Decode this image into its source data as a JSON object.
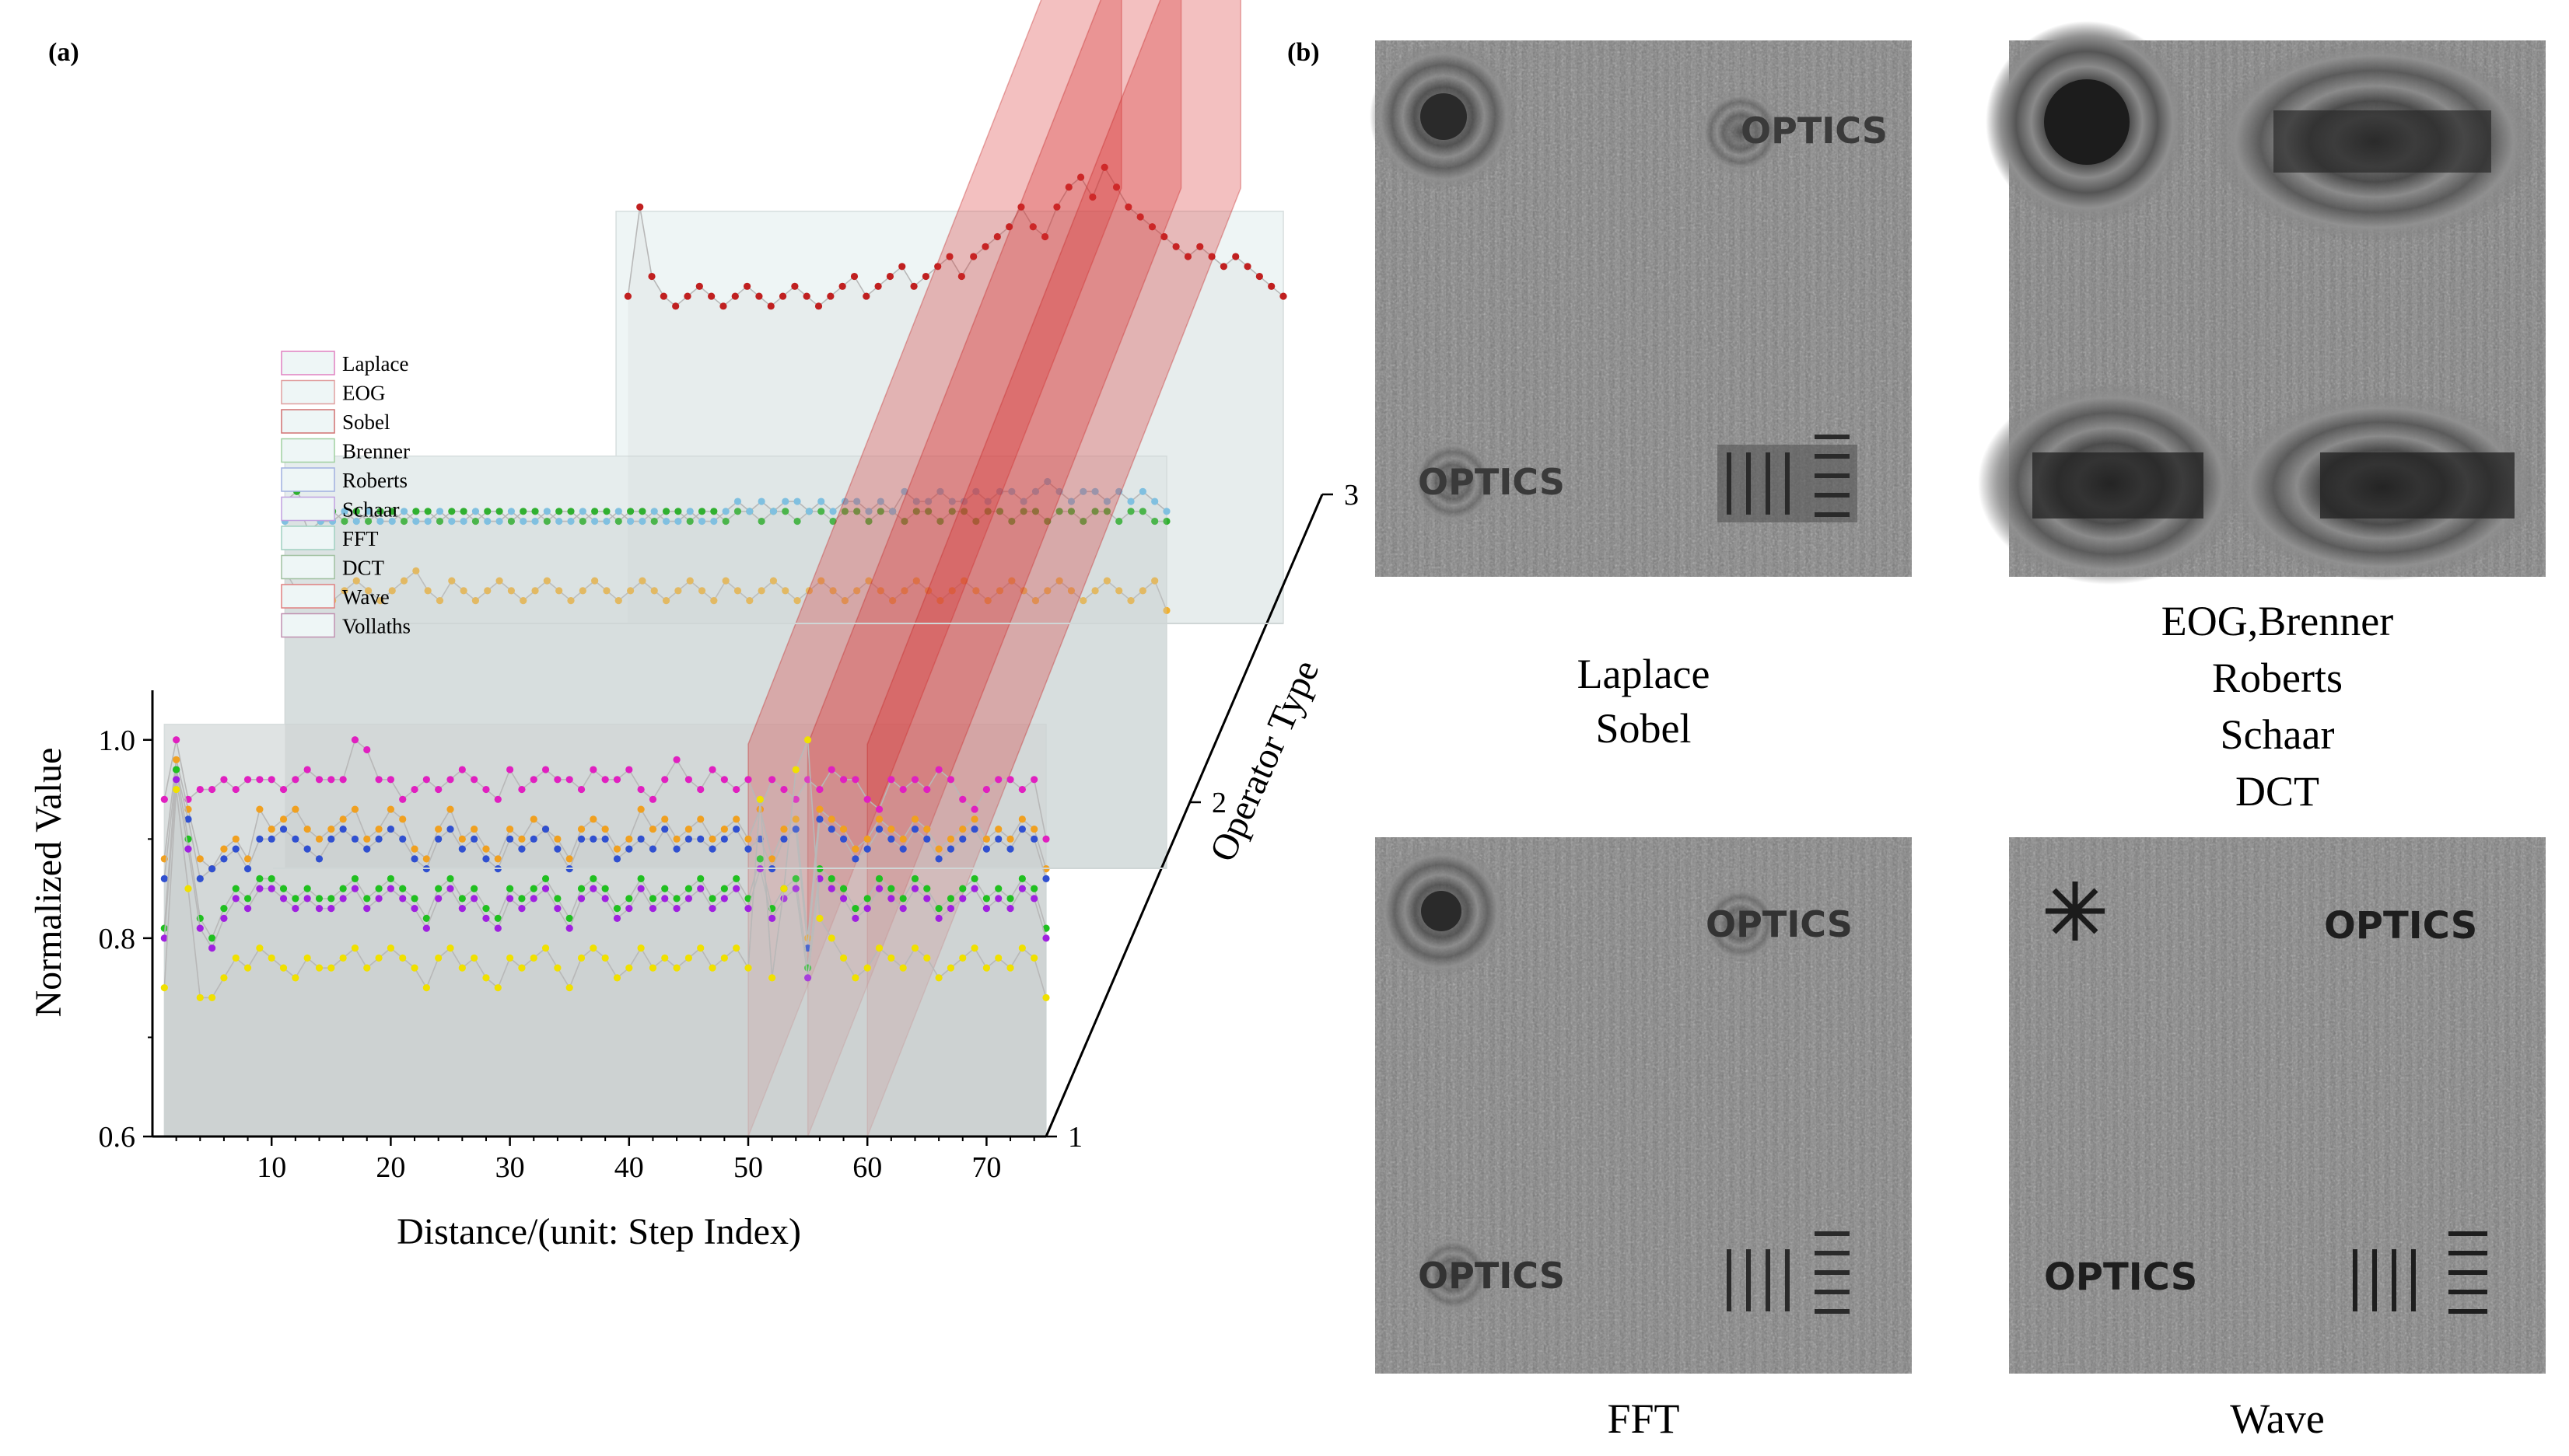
{
  "panel_labels": {
    "a": "(a)",
    "b": "(b)"
  },
  "chart_data": {
    "type": "line",
    "title": "",
    "xlabel": "Distance/(unit: Step Index)",
    "ylabel": "Normalized Value",
    "zlabel": "Operator Type",
    "xlim": [
      0,
      75
    ],
    "ylim": [
      0.6,
      1.05
    ],
    "x_ticks": [
      "10",
      "20",
      "30",
      "40",
      "50",
      "60",
      "70"
    ],
    "y_ticks": [
      "0.6",
      "0.8",
      "1.0"
    ],
    "z_ticks": [
      "1",
      "2",
      "3"
    ],
    "legend_position": "upper-left",
    "legend": [
      "Laplace",
      "EOG",
      "Sobel",
      "Brenner",
      "Roberts",
      "Schaar",
      "FFT",
      "DCT",
      "Wave",
      "Vollaths"
    ],
    "highlight_planes_x": [
      50,
      55,
      60
    ],
    "series": [
      {
        "name": "Laplace (pink, layer 1)",
        "layer": 1,
        "x_start": 1,
        "color": "#e020c0",
        "values": [
          0.94,
          1.0,
          0.94,
          0.95,
          0.95,
          0.96,
          0.95,
          0.96,
          0.96,
          0.96,
          0.95,
          0.96,
          0.97,
          0.96,
          0.96,
          0.96,
          1.0,
          0.99,
          0.96,
          0.96,
          0.94,
          0.95,
          0.96,
          0.95,
          0.96,
          0.97,
          0.96,
          0.95,
          0.94,
          0.97,
          0.95,
          0.96,
          0.97,
          0.96,
          0.96,
          0.95,
          0.97,
          0.96,
          0.96,
          0.97,
          0.95,
          0.94,
          0.96,
          0.98,
          0.96,
          0.95,
          0.97,
          0.96,
          0.95,
          0.96,
          0.93,
          0.96,
          0.95,
          0.94,
          0.96,
          0.95,
          0.97,
          0.96,
          0.96,
          0.94,
          0.93,
          0.96,
          0.95,
          0.96,
          0.95,
          0.97,
          0.96,
          0.94,
          0.93,
          0.95,
          0.96,
          0.96,
          0.95,
          0.96,
          0.9
        ]
      },
      {
        "name": "Sobel (orange, layer 1)",
        "layer": 1,
        "x_start": 1,
        "color": "#f0a020",
        "values": [
          0.88,
          0.98,
          0.93,
          0.88,
          0.87,
          0.89,
          0.9,
          0.88,
          0.93,
          0.91,
          0.92,
          0.93,
          0.91,
          0.9,
          0.91,
          0.92,
          0.93,
          0.9,
          0.91,
          0.93,
          0.92,
          0.89,
          0.88,
          0.91,
          0.93,
          0.9,
          0.91,
          0.89,
          0.88,
          0.91,
          0.9,
          0.92,
          0.91,
          0.9,
          0.88,
          0.91,
          0.92,
          0.91,
          0.89,
          0.9,
          0.93,
          0.91,
          0.92,
          0.9,
          0.91,
          0.92,
          0.9,
          0.91,
          0.92,
          0.9,
          0.93,
          0.88,
          0.91,
          0.92,
          0.8,
          0.93,
          0.92,
          0.91,
          0.89,
          0.9,
          0.92,
          0.91,
          0.9,
          0.92,
          0.91,
          0.89,
          0.9,
          0.91,
          0.92,
          0.9,
          0.91,
          0.9,
          0.92,
          0.91,
          0.87
        ]
      },
      {
        "name": "Roberts (blue, layer 1)",
        "layer": 1,
        "x_start": 1,
        "color": "#3050d0",
        "values": [
          0.86,
          0.97,
          0.92,
          0.86,
          0.87,
          0.88,
          0.89,
          0.87,
          0.9,
          0.9,
          0.91,
          0.9,
          0.89,
          0.88,
          0.9,
          0.91,
          0.9,
          0.89,
          0.9,
          0.91,
          0.9,
          0.88,
          0.87,
          0.9,
          0.91,
          0.89,
          0.9,
          0.88,
          0.87,
          0.9,
          0.89,
          0.9,
          0.91,
          0.89,
          0.87,
          0.9,
          0.9,
          0.9,
          0.88,
          0.89,
          0.9,
          0.89,
          0.91,
          0.89,
          0.9,
          0.9,
          0.89,
          0.9,
          0.91,
          0.89,
          0.9,
          0.87,
          0.9,
          0.91,
          0.79,
          0.92,
          0.91,
          0.9,
          0.88,
          0.89,
          0.91,
          0.9,
          0.89,
          0.91,
          0.9,
          0.88,
          0.89,
          0.9,
          0.91,
          0.89,
          0.9,
          0.89,
          0.91,
          0.9,
          0.86
        ]
      },
      {
        "name": "Brenner (green, layer 1)",
        "layer": 1,
        "x_start": 1,
        "color": "#20c020",
        "values": [
          0.81,
          0.97,
          0.9,
          0.82,
          0.8,
          0.83,
          0.85,
          0.84,
          0.86,
          0.86,
          0.85,
          0.84,
          0.85,
          0.84,
          0.84,
          0.85,
          0.86,
          0.84,
          0.85,
          0.86,
          0.85,
          0.84,
          0.82,
          0.85,
          0.86,
          0.84,
          0.85,
          0.83,
          0.82,
          0.85,
          0.84,
          0.85,
          0.86,
          0.84,
          0.82,
          0.85,
          0.86,
          0.85,
          0.83,
          0.84,
          0.86,
          0.84,
          0.85,
          0.84,
          0.85,
          0.86,
          0.84,
          0.85,
          0.86,
          0.84,
          0.88,
          0.83,
          0.85,
          0.86,
          0.77,
          0.87,
          0.86,
          0.85,
          0.83,
          0.84,
          0.86,
          0.85,
          0.84,
          0.86,
          0.85,
          0.83,
          0.84,
          0.85,
          0.86,
          0.84,
          0.85,
          0.84,
          0.86,
          0.85,
          0.81
        ]
      },
      {
        "name": "Schaar (purple, layer 1)",
        "layer": 1,
        "x_start": 1,
        "color": "#a020e0",
        "values": [
          0.8,
          0.96,
          0.89,
          0.81,
          0.79,
          0.82,
          0.84,
          0.83,
          0.85,
          0.85,
          0.84,
          0.83,
          0.84,
          0.83,
          0.83,
          0.84,
          0.85,
          0.83,
          0.84,
          0.85,
          0.84,
          0.83,
          0.81,
          0.84,
          0.85,
          0.83,
          0.84,
          0.82,
          0.81,
          0.84,
          0.83,
          0.84,
          0.85,
          0.83,
          0.81,
          0.84,
          0.85,
          0.84,
          0.82,
          0.83,
          0.85,
          0.83,
          0.84,
          0.83,
          0.84,
          0.85,
          0.83,
          0.84,
          0.85,
          0.83,
          0.87,
          0.82,
          0.84,
          0.85,
          0.76,
          0.86,
          0.85,
          0.84,
          0.82,
          0.83,
          0.85,
          0.84,
          0.83,
          0.85,
          0.84,
          0.82,
          0.83,
          0.84,
          0.85,
          0.83,
          0.84,
          0.83,
          0.85,
          0.84,
          0.8
        ]
      },
      {
        "name": "Vollaths (yellow, layer 1)",
        "layer": 1,
        "x_start": 1,
        "color": "#f0e000",
        "values": [
          0.75,
          0.95,
          0.85,
          0.74,
          0.74,
          0.76,
          0.78,
          0.77,
          0.79,
          0.78,
          0.77,
          0.76,
          0.78,
          0.77,
          0.77,
          0.78,
          0.79,
          0.77,
          0.78,
          0.79,
          0.78,
          0.77,
          0.75,
          0.78,
          0.79,
          0.77,
          0.78,
          0.76,
          0.75,
          0.78,
          0.77,
          0.78,
          0.79,
          0.77,
          0.75,
          0.78,
          0.79,
          0.78,
          0.76,
          0.77,
          0.79,
          0.77,
          0.78,
          0.77,
          0.78,
          0.79,
          0.77,
          0.78,
          0.79,
          0.77,
          0.94,
          0.76,
          0.85,
          0.97,
          1.0,
          0.82,
          0.8,
          0.78,
          0.76,
          0.77,
          0.79,
          0.78,
          0.77,
          0.79,
          0.78,
          0.76,
          0.77,
          0.78,
          0.79,
          0.77,
          0.78,
          0.77,
          0.79,
          0.78,
          0.74
        ]
      },
      {
        "name": "DCT (orange, layer 2)",
        "layer": 2,
        "x_start": 1,
        "color": "#f0b030",
        "values": [
          0.9,
          0.88,
          0.87,
          0.88,
          0.87,
          0.88,
          0.89,
          0.88,
          0.87,
          0.88,
          0.89,
          0.9,
          0.88,
          0.87,
          0.89,
          0.88,
          0.87,
          0.88,
          0.89,
          0.88,
          0.87,
          0.88,
          0.89,
          0.88,
          0.87,
          0.88,
          0.89,
          0.88,
          0.87,
          0.88,
          0.89,
          0.88,
          0.87,
          0.88,
          0.89,
          0.88,
          0.87,
          0.89,
          0.88,
          0.87,
          0.88,
          0.89,
          0.88,
          0.87,
          0.88,
          0.89,
          0.88,
          0.87,
          0.88,
          0.89,
          0.88,
          0.87,
          0.88,
          0.89,
          0.88,
          0.87,
          0.88,
          0.89,
          0.88,
          0.87,
          0.88,
          0.89,
          0.88,
          0.87,
          0.88,
          0.89,
          0.88,
          0.87,
          0.88,
          0.89,
          0.88,
          0.87,
          0.88,
          0.89,
          0.86
        ]
      },
      {
        "name": "EOG (green, layer 2)",
        "layer": 2,
        "x_start": 1,
        "color": "#30b030",
        "values": [
          0.97,
          0.98,
          0.96,
          0.95,
          0.96,
          0.95,
          0.96,
          0.95,
          0.96,
          0.96,
          0.95,
          0.96,
          0.96,
          0.95,
          0.96,
          0.96,
          0.95,
          0.96,
          0.96,
          0.95,
          0.96,
          0.96,
          0.95,
          0.96,
          0.96,
          0.95,
          0.96,
          0.96,
          0.95,
          0.96,
          0.96,
          0.95,
          0.96,
          0.96,
          0.95,
          0.96,
          0.96,
          0.95,
          0.96,
          0.96,
          0.95,
          0.96,
          0.96,
          0.95,
          0.96,
          0.96,
          0.95,
          0.96,
          0.96,
          0.95,
          0.96,
          0.96,
          0.95,
          0.96,
          0.96,
          0.95,
          0.96,
          0.96,
          0.95,
          0.96,
          0.96,
          0.95,
          0.96,
          0.96,
          0.95,
          0.96,
          0.96,
          0.95,
          0.96,
          0.96,
          0.95,
          0.96,
          0.96,
          0.95,
          0.95
        ]
      },
      {
        "name": "FFT (light blue, layer 2)",
        "layer": 2,
        "x_start": 1,
        "color": "#80c0e0",
        "values": [
          0.95,
          0.97,
          0.94,
          0.95,
          0.95,
          0.96,
          0.95,
          0.96,
          0.95,
          0.95,
          0.96,
          0.95,
          0.95,
          0.96,
          0.95,
          0.95,
          0.96,
          0.95,
          0.95,
          0.96,
          0.95,
          0.95,
          0.96,
          0.95,
          0.95,
          0.96,
          0.95,
          0.95,
          0.96,
          0.95,
          0.95,
          0.96,
          0.95,
          0.95,
          0.96,
          0.95,
          0.95,
          0.96,
          0.97,
          0.96,
          0.97,
          0.96,
          0.97,
          0.97,
          0.96,
          0.97,
          0.96,
          0.97,
          0.97,
          0.96,
          0.97,
          0.96,
          0.98,
          0.97,
          0.97,
          0.98,
          0.97,
          0.97,
          0.98,
          0.97,
          0.98,
          0.98,
          0.97,
          0.98,
          0.99,
          0.98,
          0.97,
          0.98,
          0.98,
          0.97,
          0.98,
          0.97,
          0.98,
          0.97,
          0.96
        ]
      },
      {
        "name": "Wave (red, layer 3)",
        "layer": 3,
        "x_start": 20,
        "color": "#c02020",
        "values": [
          0.93,
          1.02,
          0.95,
          0.93,
          0.92,
          0.93,
          0.94,
          0.93,
          0.92,
          0.93,
          0.94,
          0.93,
          0.92,
          0.93,
          0.94,
          0.93,
          0.92,
          0.93,
          0.94,
          0.95,
          0.93,
          0.94,
          0.95,
          0.96,
          0.94,
          0.95,
          0.96,
          0.97,
          0.95,
          0.97,
          0.98,
          0.99,
          1.0,
          1.02,
          1.0,
          0.99,
          1.02,
          1.04,
          1.05,
          1.03,
          1.06,
          1.04,
          1.02,
          1.01,
          1.0,
          0.99,
          0.98,
          0.97,
          0.98,
          0.97,
          0.96,
          0.97,
          0.96,
          0.95,
          0.94,
          0.93
        ]
      }
    ]
  },
  "panel_b": {
    "optics_word": "OPTICS",
    "captions": {
      "top_left": [
        "Laplace",
        "Sobel"
      ],
      "top_right": [
        "EOG,Brenner",
        "Roberts",
        "Schaar",
        "DCT"
      ],
      "bottom_left": [
        "FFT"
      ],
      "bottom_right": [
        "Wave"
      ]
    }
  }
}
